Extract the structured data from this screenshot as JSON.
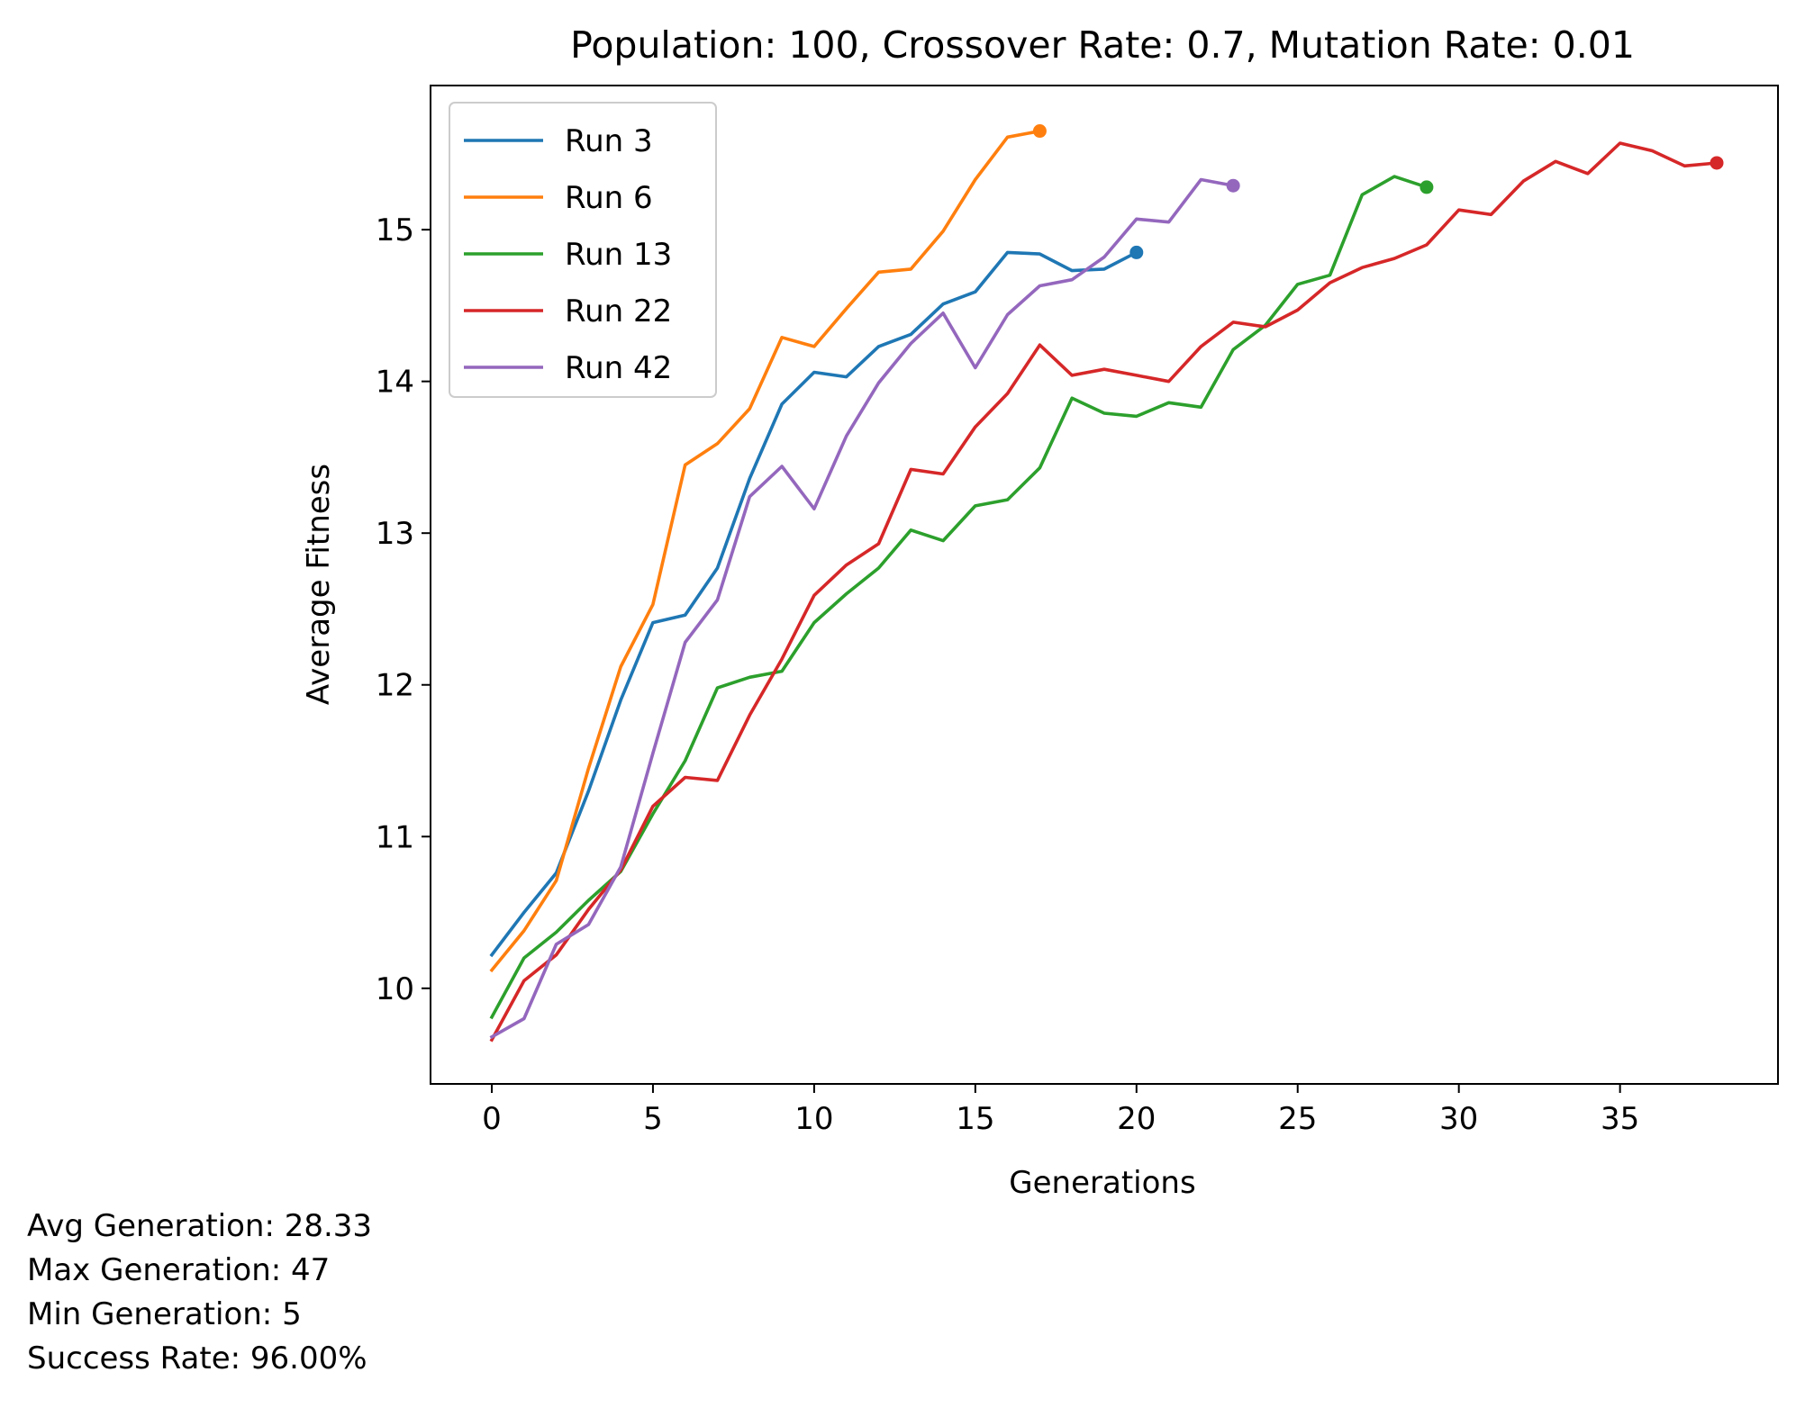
{
  "chart_data": {
    "type": "line",
    "title": "Population: 100, Crossover Rate: 0.7, Mutation Rate: 0.01",
    "xlabel": "Generations",
    "ylabel": "Average Fitness",
    "xlim": [
      -1.9,
      39.9
    ],
    "ylim": [
      9.37,
      15.95
    ],
    "xticks": [
      0,
      5,
      10,
      15,
      20,
      25,
      30,
      35
    ],
    "yticks": [
      10,
      11,
      12,
      13,
      14,
      15
    ],
    "grid": false,
    "legend": "top-left",
    "series": [
      {
        "name": "Run 3",
        "color": "#1f77b4",
        "values": [
          10.22,
          10.5,
          10.76,
          11.3,
          11.9,
          12.41,
          12.46,
          12.77,
          13.36,
          13.85,
          14.06,
          14.03,
          14.23,
          14.31,
          14.51,
          14.59,
          14.85,
          14.84,
          14.73,
          14.74,
          14.85
        ]
      },
      {
        "name": "Run 6",
        "color": "#ff7f0e",
        "values": [
          10.12,
          10.38,
          10.71,
          11.45,
          12.12,
          12.53,
          13.45,
          13.59,
          13.82,
          14.29,
          14.23,
          14.48,
          14.72,
          14.74,
          14.99,
          15.33,
          15.61,
          15.65
        ]
      },
      {
        "name": "Run 13",
        "color": "#2ca02c",
        "values": [
          9.81,
          10.2,
          10.37,
          10.58,
          10.77,
          11.15,
          11.5,
          11.98,
          12.05,
          12.09,
          12.41,
          12.6,
          12.77,
          13.02,
          12.95,
          13.18,
          13.22,
          13.43,
          13.89,
          13.79,
          13.77,
          13.86,
          13.83,
          14.21,
          14.37,
          14.64,
          14.7,
          15.23,
          15.35,
          15.28
        ]
      },
      {
        "name": "Run 22",
        "color": "#d62728",
        "values": [
          9.66,
          10.05,
          10.22,
          10.52,
          10.78,
          11.2,
          11.39,
          11.37,
          11.8,
          12.17,
          12.59,
          12.79,
          12.93,
          13.42,
          13.39,
          13.7,
          13.92,
          14.24,
          14.04,
          14.08,
          14.04,
          14.0,
          14.23,
          14.39,
          14.36,
          14.47,
          14.65,
          14.75,
          14.81,
          14.9,
          15.13,
          15.1,
          15.32,
          15.45,
          15.37,
          15.57,
          15.52,
          15.42,
          15.44
        ]
      },
      {
        "name": "Run 42",
        "color": "#9467bd",
        "values": [
          9.68,
          9.8,
          10.29,
          10.42,
          10.8,
          11.55,
          12.28,
          12.56,
          13.24,
          13.44,
          13.16,
          13.64,
          13.99,
          14.25,
          14.45,
          14.09,
          14.44,
          14.63,
          14.67,
          14.82,
          15.07,
          15.05,
          15.33,
          15.29
        ]
      }
    ]
  },
  "stats": {
    "avg_generation": "Avg Generation: 28.33",
    "max_generation": "Max Generation: 47",
    "min_generation": "Min Generation: 5",
    "success_rate": "Success Rate: 96.00%"
  }
}
